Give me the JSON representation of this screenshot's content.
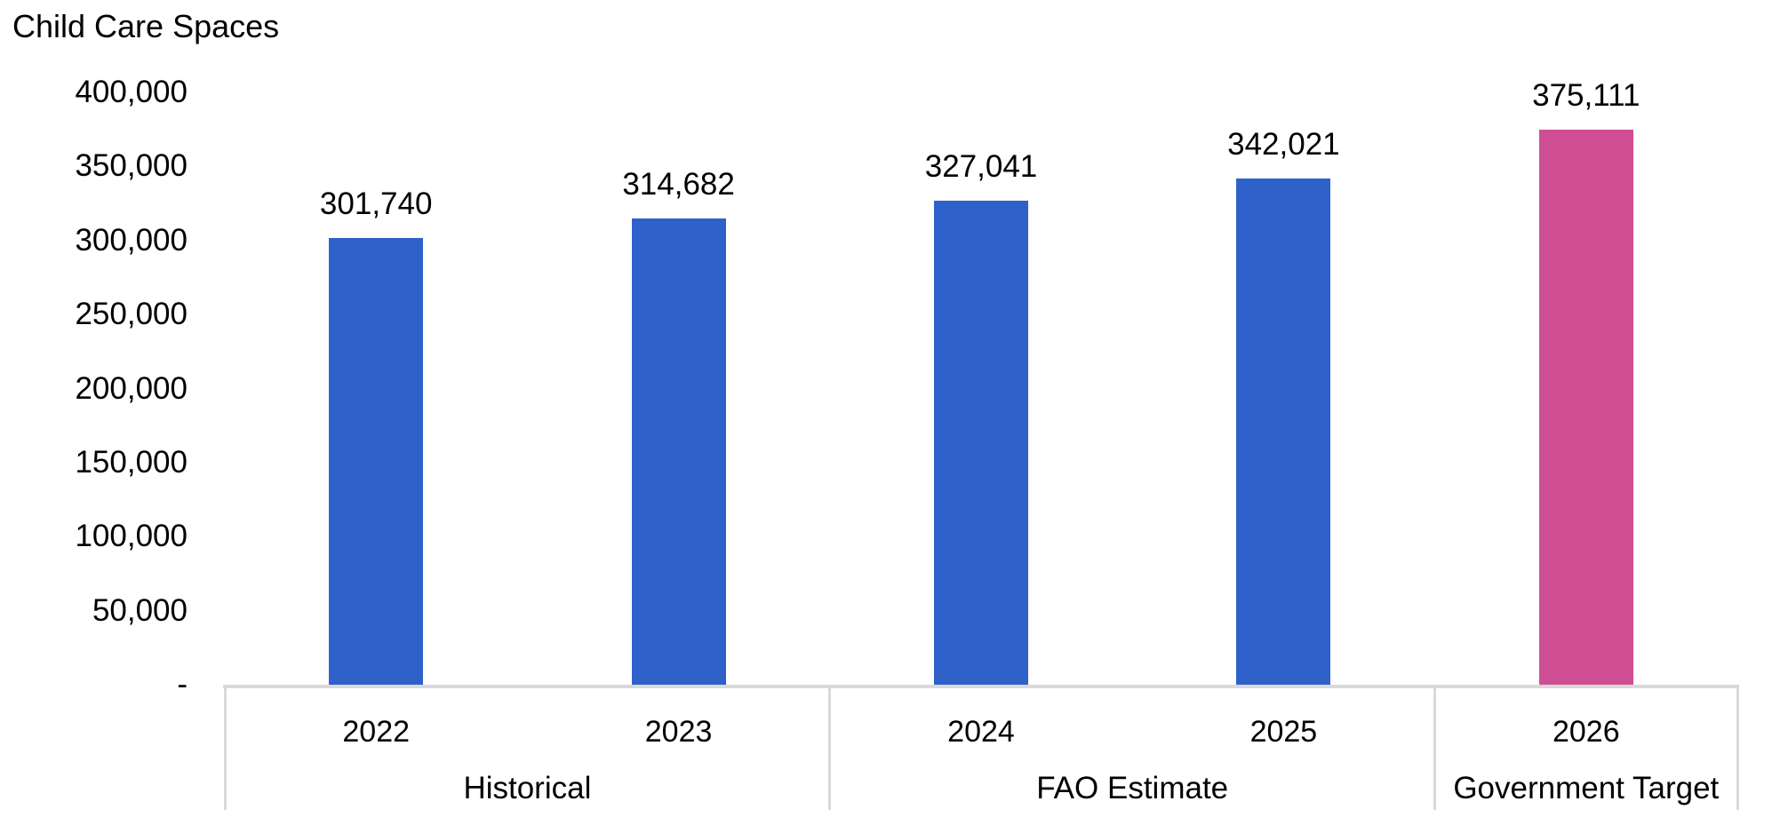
{
  "colors": {
    "background": "#FFFFFF",
    "text": "#000000",
    "axis_line": "#D9D9D9",
    "bar_default": "#2E61C9",
    "bar_target": "#CF4E93"
  },
  "chart_data": {
    "type": "bar",
    "title": "Child Care Spaces",
    "xlabel": "",
    "ylabel": "Child Care Spaces",
    "ylim": [
      0,
      400000
    ],
    "ytick_step": 50000,
    "ytick_labels": [
      "-",
      "50,000",
      "100,000",
      "150,000",
      "200,000",
      "250,000",
      "300,000",
      "350,000",
      "400,000"
    ],
    "grid": false,
    "legend": "none",
    "groups": [
      {
        "label": "Historical",
        "bars": [
          {
            "category": "2022",
            "value": 301740,
            "value_label": "301,740",
            "color_key": "bar_default"
          },
          {
            "category": "2023",
            "value": 314682,
            "value_label": "314,682",
            "color_key": "bar_default"
          }
        ]
      },
      {
        "label": "FAO Estimate",
        "bars": [
          {
            "category": "2024",
            "value": 327041,
            "value_label": "327,041",
            "color_key": "bar_default"
          },
          {
            "category": "2025",
            "value": 342021,
            "value_label": "342,021",
            "color_key": "bar_default"
          }
        ]
      },
      {
        "label": "Government Target",
        "bars": [
          {
            "category": "2026",
            "value": 375111,
            "value_label": "375,111",
            "color_key": "bar_target"
          }
        ]
      }
    ]
  }
}
